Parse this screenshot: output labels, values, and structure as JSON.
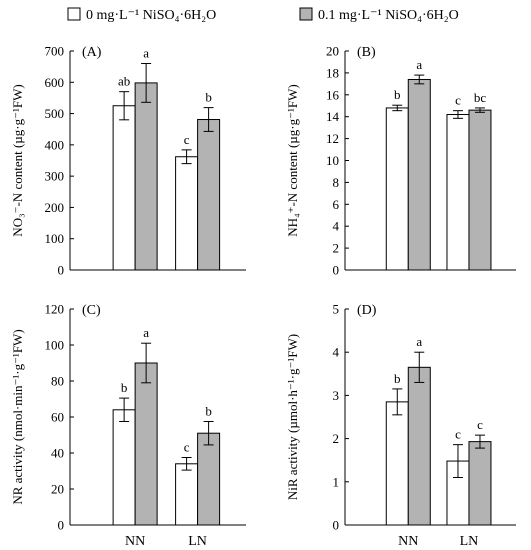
{
  "legend": {
    "series_white": "0 mg·L⁻¹ NiSO₄·6H₂O",
    "series_gray": "0.1 mg·L⁻¹ NiSO₄·6H₂O"
  },
  "colors": {
    "white_bar": "#ffffff",
    "gray_bar": "#b3b3b3",
    "stroke": "#000000"
  },
  "chart_data": [
    {
      "type": "bar",
      "panel": "(A)",
      "ylabel": "NO₃⁻-N content (µg·g⁻¹FW)",
      "categories": [
        "NN",
        "LN"
      ],
      "ylim": [
        0,
        700
      ],
      "yticks": [
        0,
        100,
        200,
        300,
        400,
        500,
        600,
        700
      ],
      "series": [
        {
          "values": [
            525,
            362
          ],
          "errors": [
            45,
            22
          ],
          "labels": [
            "ab",
            "c"
          ]
        },
        {
          "values": [
            598,
            481
          ],
          "errors": [
            62,
            38
          ],
          "labels": [
            "a",
            "b"
          ]
        }
      ]
    },
    {
      "type": "bar",
      "panel": "(B)",
      "ylabel": "NH₄⁺-N content (µg·g⁻¹FW)",
      "categories": [
        "NN",
        "LN"
      ],
      "ylim": [
        0,
        20
      ],
      "yticks": [
        0,
        2,
        4,
        6,
        8,
        10,
        12,
        14,
        16,
        18,
        20
      ],
      "series": [
        {
          "values": [
            14.8,
            14.2
          ],
          "errors": [
            0.25,
            0.35
          ],
          "labels": [
            "b",
            "c"
          ]
        },
        {
          "values": [
            17.4,
            14.6
          ],
          "errors": [
            0.4,
            0.2
          ],
          "labels": [
            "a",
            "bc"
          ]
        }
      ]
    },
    {
      "type": "bar",
      "panel": "(C)",
      "ylabel": "NR activity (nmol·min⁻¹·g⁻¹FW)",
      "categories": [
        "NN",
        "LN"
      ],
      "ylim": [
        0,
        120
      ],
      "yticks": [
        0,
        20,
        40,
        60,
        80,
        100,
        120
      ],
      "series": [
        {
          "values": [
            64,
            34
          ],
          "errors": [
            6.5,
            3.5
          ],
          "labels": [
            "b",
            "c"
          ]
        },
        {
          "values": [
            90,
            51
          ],
          "errors": [
            11,
            6.5
          ],
          "labels": [
            "a",
            "b"
          ]
        }
      ]
    },
    {
      "type": "bar",
      "panel": "(D)",
      "ylabel": "NiR activity (µmol·h⁻¹·g⁻¹FW)",
      "categories": [
        "NN",
        "LN"
      ],
      "ylim": [
        0,
        5
      ],
      "yticks": [
        0,
        1,
        2,
        3,
        4,
        5
      ],
      "series": [
        {
          "values": [
            2.85,
            1.48
          ],
          "errors": [
            0.3,
            0.38
          ],
          "labels": [
            "b",
            "c"
          ]
        },
        {
          "values": [
            3.65,
            1.93
          ],
          "errors": [
            0.35,
            0.15
          ],
          "labels": [
            "a",
            "c"
          ]
        }
      ]
    }
  ]
}
